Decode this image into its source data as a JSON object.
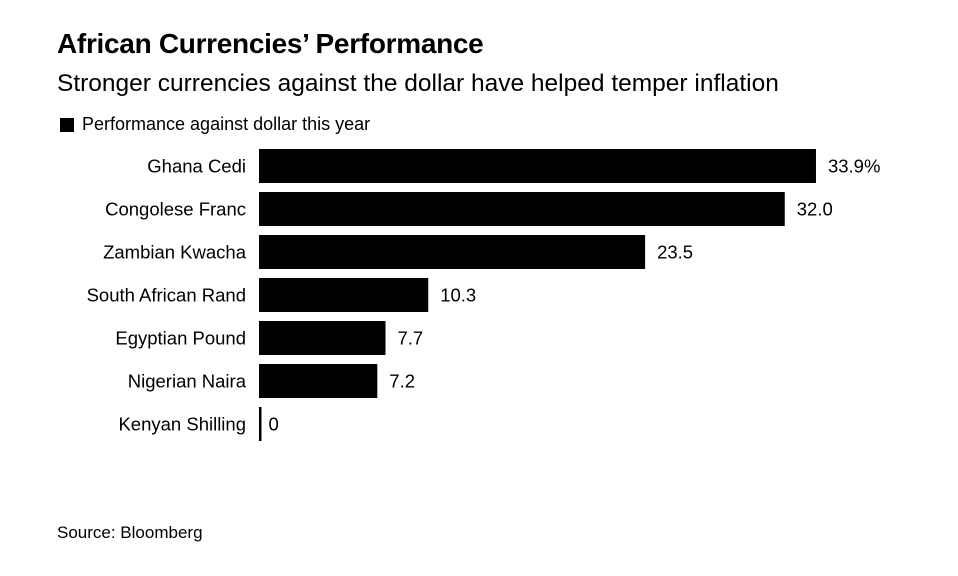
{
  "chart_data": {
    "type": "bar",
    "orientation": "horizontal",
    "title": "African Currencies’ Performance",
    "subtitle": "Stronger currencies against the dollar have helped temper inflation",
    "legend": {
      "label": "Performance against dollar this year",
      "placement": "top-left"
    },
    "categories": [
      "Ghana Cedi",
      "Congolese Franc",
      "Zambian Kwacha",
      "South African Rand",
      "Egyptian Pound",
      "Nigerian Naira",
      "Kenyan Shilling"
    ],
    "series": [
      {
        "name": "Performance against dollar this year",
        "values": [
          33.9,
          32.0,
          23.5,
          10.3,
          7.7,
          7.2,
          0
        ],
        "color": "#000000"
      }
    ],
    "data_labels": [
      "33.9%",
      "32.0",
      "23.5",
      "10.3",
      "7.7",
      "7.2",
      "0"
    ],
    "grid": false,
    "source": "Source: Bloomberg"
  }
}
